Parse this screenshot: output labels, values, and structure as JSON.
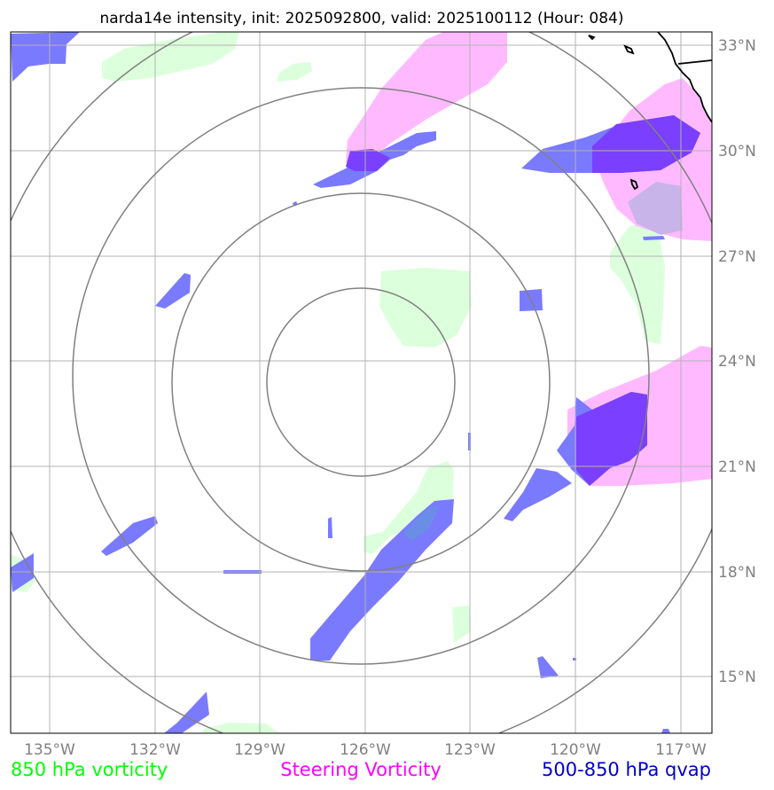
{
  "title": "narda14e intensity, init: 2025092800, valid: 2025100112 (Hour: 084)",
  "lon_labels": [
    "135°W",
    "132°W",
    "129°W",
    "126°W",
    "123°W",
    "120°W",
    "117°W"
  ],
  "lat_labels": [
    "33°N",
    "30°N",
    "27°N",
    "24°N",
    "21°N",
    "18°N",
    "15°N"
  ],
  "legend": {
    "vort850": "850 hPa vorticity",
    "steering": "Steering Vorticity",
    "qvap": "500-850 hPa qvap"
  },
  "colors": {
    "vort850": "#00ff00",
    "steering": "#ff00ff",
    "qvap": "#0000cc",
    "fill_green": "#dcffdc",
    "fill_pink": "#ffbaff",
    "fill_blue": "#7a7aff",
    "fill_purple": "#7a3fff",
    "grid": "#b3b3b3",
    "ring": "#808080"
  },
  "extent": {
    "lon_min": -136.0,
    "lon_max": -116.0,
    "lat_min": 13.5,
    "lat_max": 33.5
  },
  "storm_center": {
    "lon": -126.0,
    "lat": 23.5
  }
}
